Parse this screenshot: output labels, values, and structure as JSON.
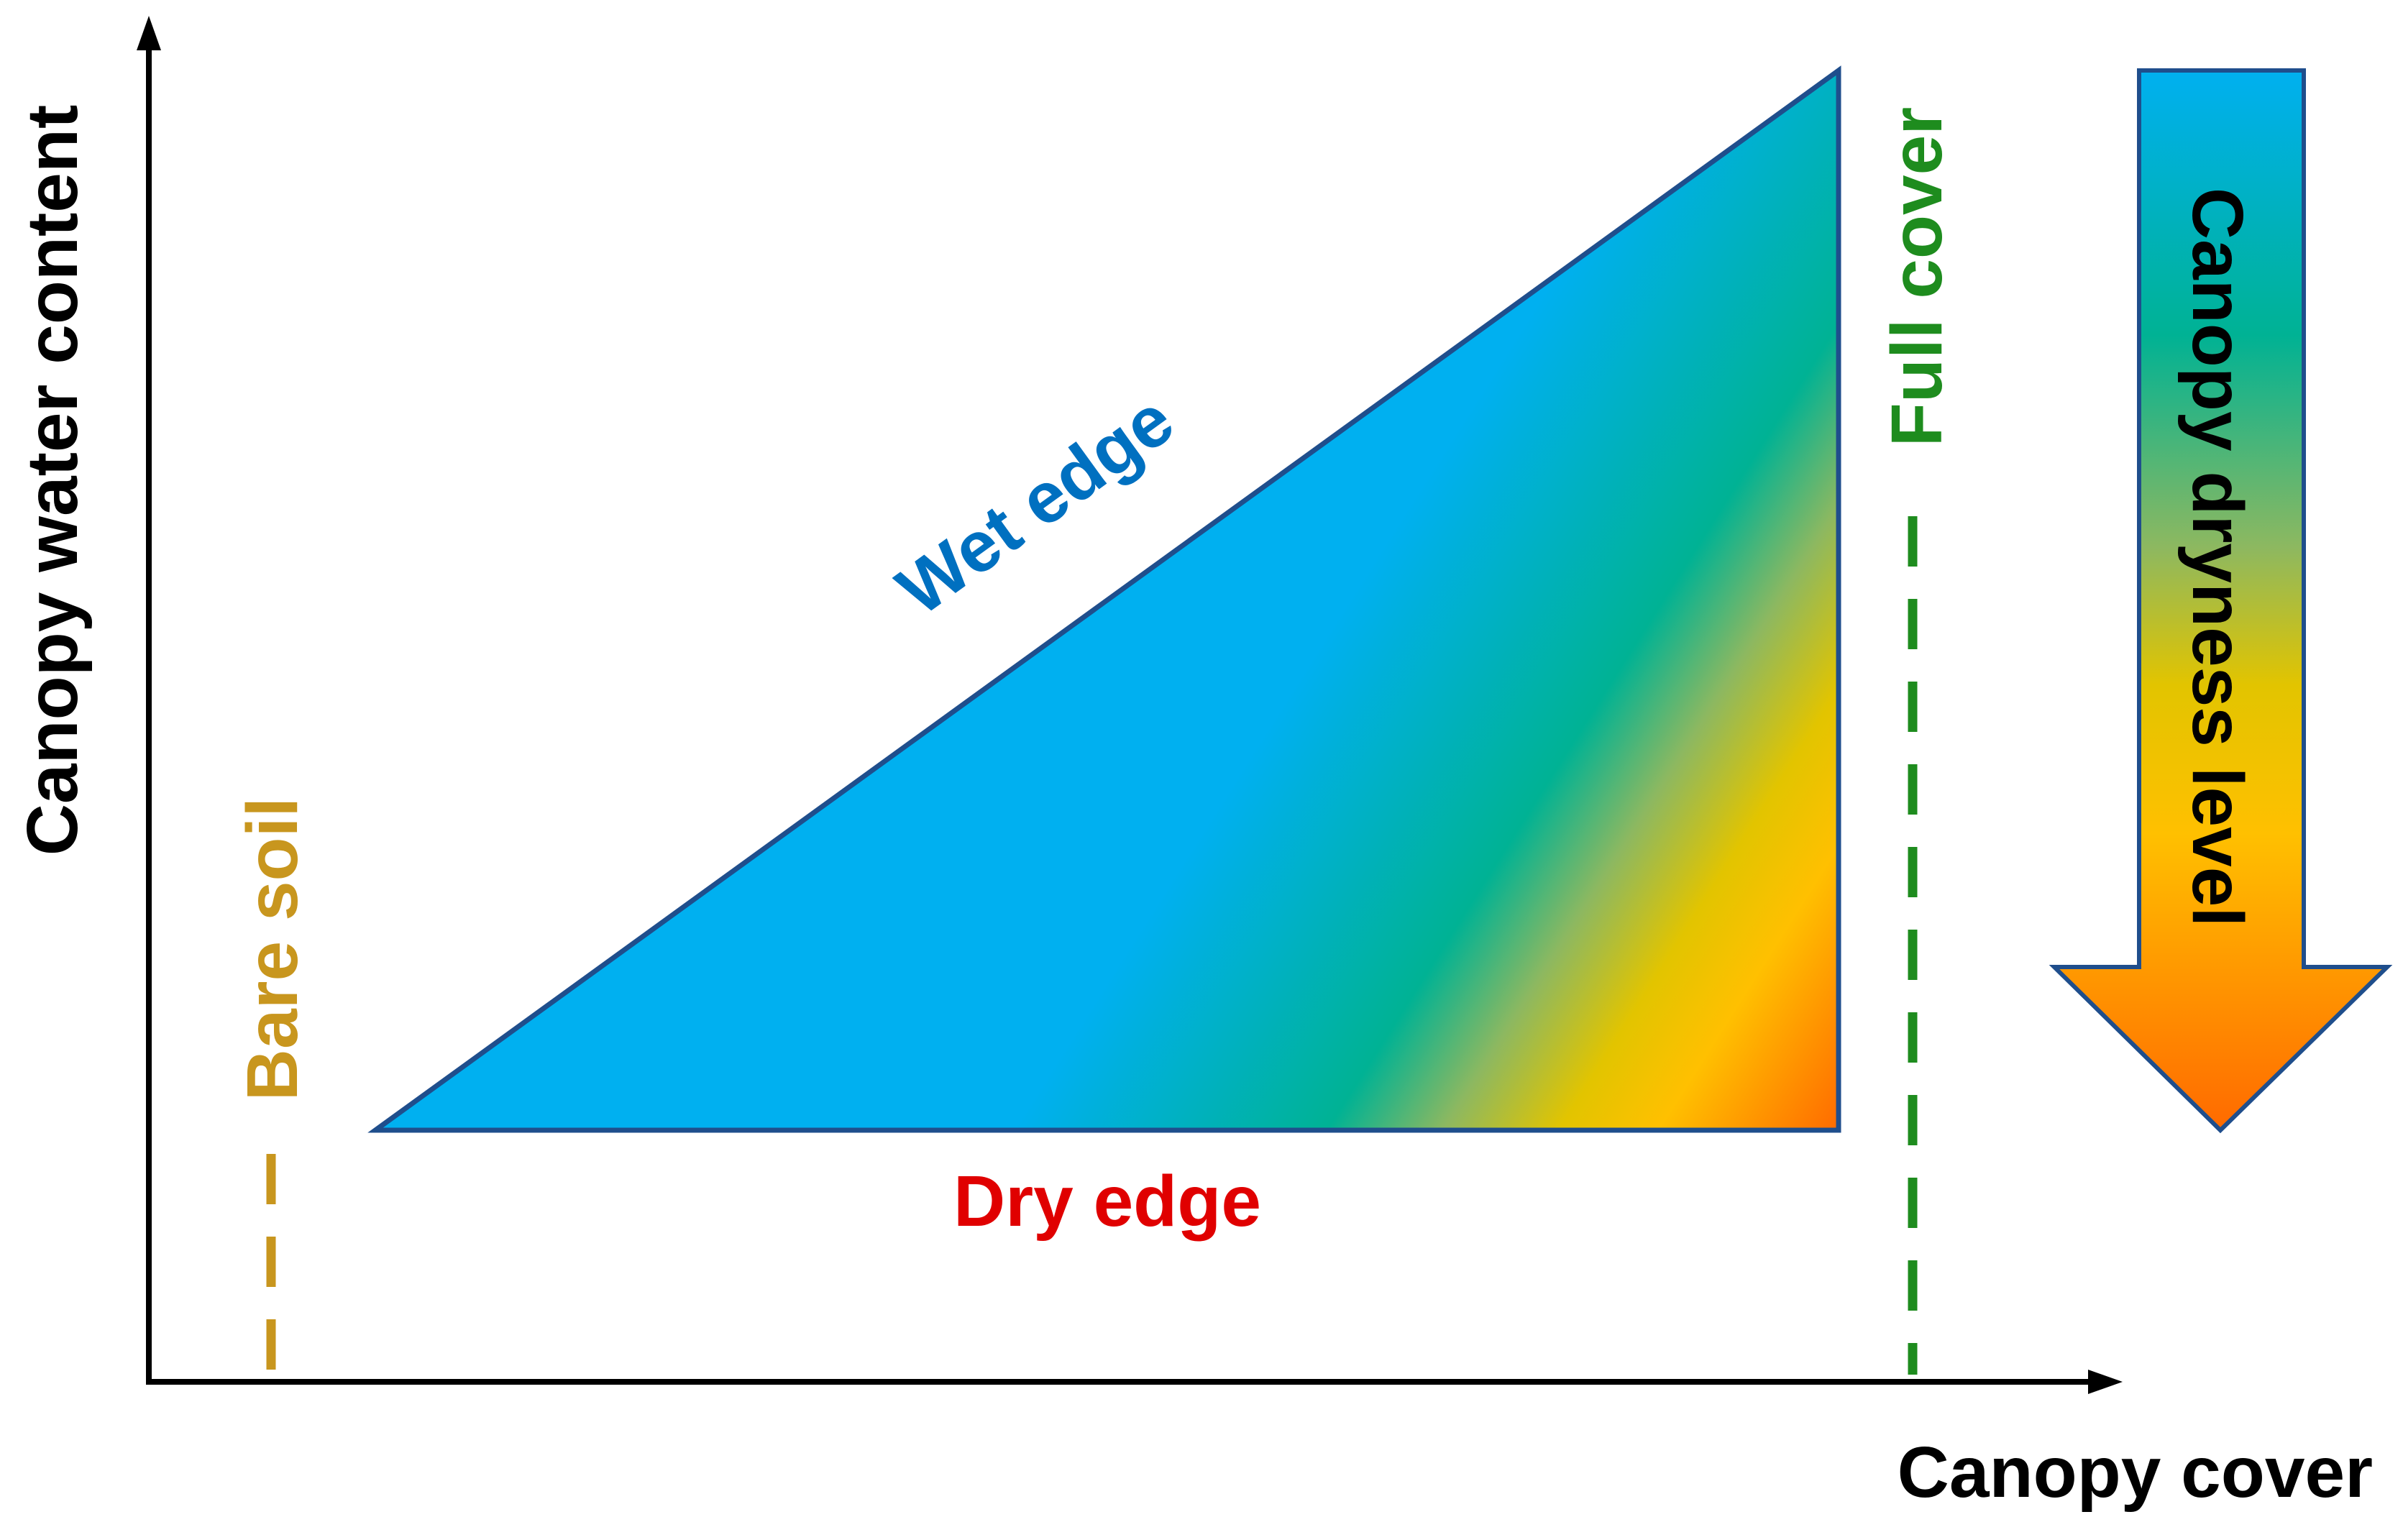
{
  "diagram": {
    "axes": {
      "x_label": "Canopy cover",
      "y_label": "Canopy water content"
    },
    "reference_lines": {
      "bare_soil": "Bare soil",
      "full_cover": "Full cover"
    },
    "triangle": {
      "wet_edge": "Wet edge",
      "dry_edge": "Dry edge"
    },
    "arrow": {
      "label": "Canopy dryness level"
    }
  },
  "colors": {
    "axis": "#000000",
    "wet_edge_text": "#0070C0",
    "dry_edge_text": "#E00000",
    "bare_soil": "#C8961E",
    "full_cover": "#1E8C1E",
    "triangle_border": "#1F4E8C",
    "gradient_wet": "#00B0F0",
    "gradient_mid": "#00B294",
    "gradient_yellow": "#FFC000",
    "gradient_dry": "#FF6A00"
  }
}
